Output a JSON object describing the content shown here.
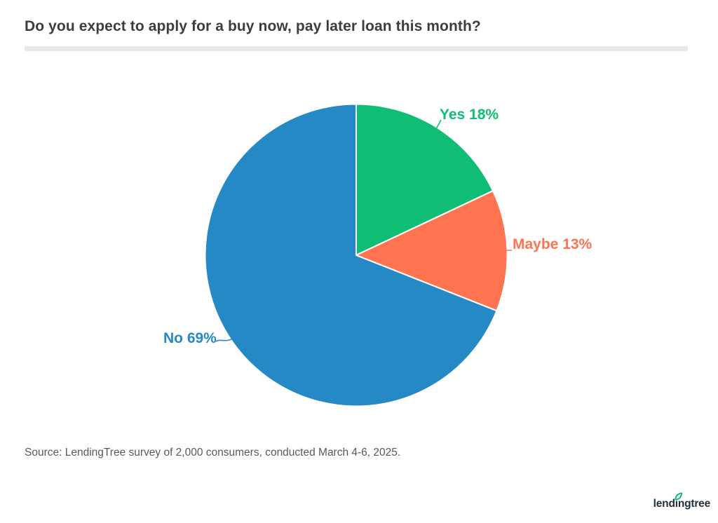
{
  "page": {
    "title": "Do you expect to apply for a buy now, pay later loan this month?",
    "source": "Source: LendingTree survey of 2,000 consumers, conducted March 4-6, 2025.",
    "logo_text": "lendingtree"
  },
  "colors": {
    "title_text": "#3d3d3d",
    "divider": "#e7e7e7",
    "source_text": "#595959",
    "logo_text": "#22303e",
    "logo_leaf": "#00b274",
    "background": "#ffffff"
  },
  "chart_data": {
    "type": "pie",
    "title": "Do you expect to apply for a buy now, pay later loan this month?",
    "legend_position": "labels-outside",
    "direction": "clockwise",
    "start_angle_deg": 0,
    "total": 100,
    "slices": [
      {
        "label": "Yes",
        "value": 18,
        "display": "Yes 18%",
        "color": "#10bd74"
      },
      {
        "label": "Maybe",
        "value": 13,
        "display": "Maybe 13%",
        "color": "#ff7450"
      },
      {
        "label": "No",
        "value": 69,
        "display": "No 69%",
        "color": "#2489c5"
      }
    ]
  }
}
